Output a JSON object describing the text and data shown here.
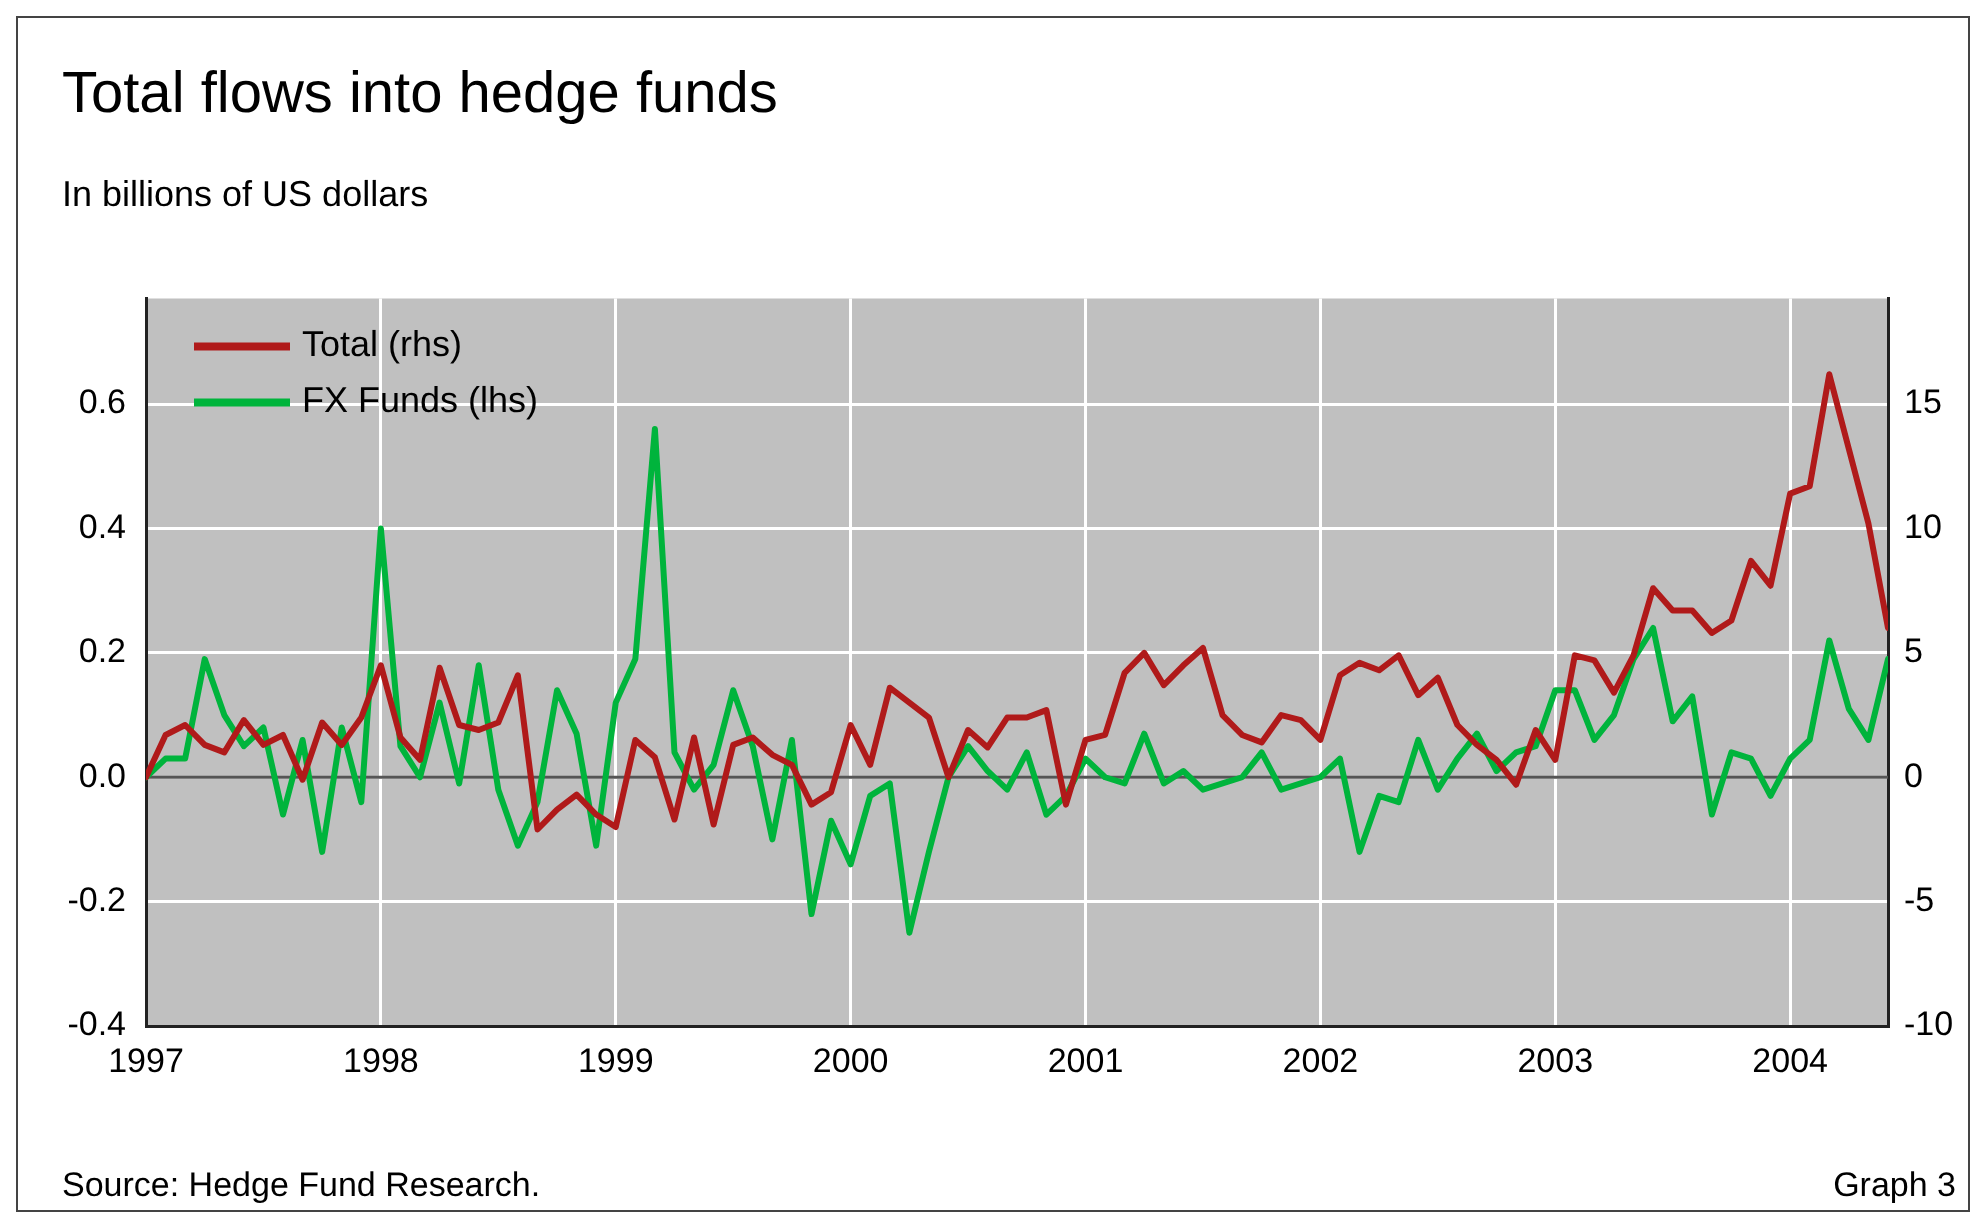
{
  "chart_data": {
    "type": "line",
    "title": "Total flows into hedge funds",
    "subtitle": "In billions of US dollars",
    "annotations": [
      "Source: Hedge Fund Research.",
      "Graph 3"
    ],
    "x": [
      "1997-01",
      "1997-02",
      "1997-03",
      "1997-04",
      "1997-05",
      "1997-06",
      "1997-07",
      "1997-08",
      "1997-09",
      "1997-10",
      "1997-11",
      "1997-12",
      "1998-01",
      "1998-02",
      "1998-03",
      "1998-04",
      "1998-05",
      "1998-06",
      "1998-07",
      "1998-08",
      "1998-09",
      "1998-10",
      "1998-11",
      "1998-12",
      "1999-01",
      "1999-02",
      "1999-03",
      "1999-04",
      "1999-05",
      "1999-06",
      "1999-07",
      "1999-08",
      "1999-09",
      "1999-10",
      "1999-11",
      "1999-12",
      "2000-01",
      "2000-02",
      "2000-03",
      "2000-04",
      "2000-05",
      "2000-06",
      "2000-07",
      "2000-08",
      "2000-09",
      "2000-10",
      "2000-11",
      "2000-12",
      "2001-01",
      "2001-02",
      "2001-03",
      "2001-04",
      "2001-05",
      "2001-06",
      "2001-07",
      "2001-08",
      "2001-09",
      "2001-10",
      "2001-11",
      "2001-12",
      "2002-01",
      "2002-02",
      "2002-03",
      "2002-04",
      "2002-05",
      "2002-06",
      "2002-07",
      "2002-08",
      "2002-09",
      "2002-10",
      "2002-11",
      "2002-12",
      "2003-01",
      "2003-02",
      "2003-03",
      "2003-04",
      "2003-05",
      "2003-06",
      "2003-07",
      "2003-08",
      "2003-09",
      "2003-10",
      "2003-11",
      "2003-12",
      "2004-01",
      "2004-02",
      "2004-03",
      "2004-04",
      "2004-05",
      "2004-06"
    ],
    "series": [
      {
        "name": "Total (rhs)",
        "color": "#b01a1a",
        "axis": "y2",
        "values": [
          0,
          1.7,
          2.1,
          1.3,
          1.0,
          2.3,
          1.3,
          1.7,
          -0.1,
          2.2,
          1.3,
          2.4,
          4.5,
          1.6,
          0.7,
          4.4,
          2.1,
          1.9,
          2.2,
          4.1,
          -2.1,
          -1.3,
          -0.7,
          -1.5,
          -2.0,
          1.5,
          0.8,
          -1.7,
          1.6,
          -1.9,
          1.3,
          1.6,
          0.9,
          0.5,
          -1.1,
          -0.6,
          2.1,
          0.5,
          3.6,
          3.0,
          2.4,
          0,
          1.9,
          1.2,
          2.4,
          2.4,
          2.7,
          -1.1,
          1.5,
          1.7,
          4.2,
          5.0,
          3.7,
          4.5,
          5.2,
          2.5,
          1.7,
          1.4,
          2.5,
          2.3,
          1.5,
          4.1,
          4.6,
          4.3,
          4.9,
          3.3,
          4.0,
          2.1,
          1.3,
          0.7,
          -0.3,
          1.9,
          0.7,
          4.9,
          4.7,
          3.4,
          4.9,
          7.6,
          6.7,
          6.7,
          5.8,
          6.3,
          8.7,
          7.7,
          11.4,
          11.7,
          16.2,
          13.2,
          10.2,
          6.0
        ]
      },
      {
        "name": "FX Funds (lhs)",
        "color": "#00b43c",
        "values": [
          0,
          0.03,
          0.03,
          0.19,
          0.1,
          0.05,
          0.08,
          -0.06,
          0.06,
          -0.12,
          0.08,
          -0.04,
          0.4,
          0.05,
          0,
          0.12,
          -0.01,
          0.18,
          -0.02,
          -0.11,
          -0.04,
          0.14,
          0.07,
          -0.11,
          0.12,
          0.19,
          0.56,
          0.04,
          -0.02,
          0.02,
          0.14,
          0.05,
          -0.1,
          0.06,
          -0.22,
          -0.07,
          -0.14,
          -0.03,
          -0.01,
          -0.25,
          -0.12,
          0,
          0.05,
          0.01,
          -0.02,
          0.04,
          -0.06,
          -0.03,
          0.03,
          0,
          -0.01,
          0.07,
          -0.01,
          0.01,
          -0.02,
          -0.01,
          0,
          0.04,
          -0.02,
          -0.01,
          0,
          0.03,
          -0.12,
          -0.03,
          -0.04,
          0.06,
          -0.02,
          0.03,
          0.07,
          0.01,
          0.04,
          0.05,
          0.14,
          0.14,
          0.06,
          0.1,
          0.19,
          0.24,
          0.09,
          0.13,
          -0.06,
          0.04,
          0.03,
          -0.03,
          0.03,
          0.06,
          0.22,
          0.11,
          0.06,
          0.19
        ]
      }
    ],
    "xlim": [
      "1997-01",
      "2004-06"
    ],
    "xticks": [
      "1997",
      "1998",
      "1999",
      "2000",
      "2001",
      "2002",
      "2003",
      "2004"
    ],
    "ylim": [
      -0.4,
      0.77
    ],
    "yticks": [
      -0.4,
      -0.2,
      {
        "value": 0,
        "label": "0.0"
      },
      0.2,
      0.4,
      0.6
    ],
    "y2lim": [
      -10,
      19.25
    ],
    "y2ticks": [
      -10,
      -5,
      0,
      5,
      10,
      15
    ],
    "ref_lines": [
      {
        "axis": "y",
        "value": 0,
        "color": "#555555"
      }
    ],
    "grid": true,
    "legend": "top left"
  }
}
